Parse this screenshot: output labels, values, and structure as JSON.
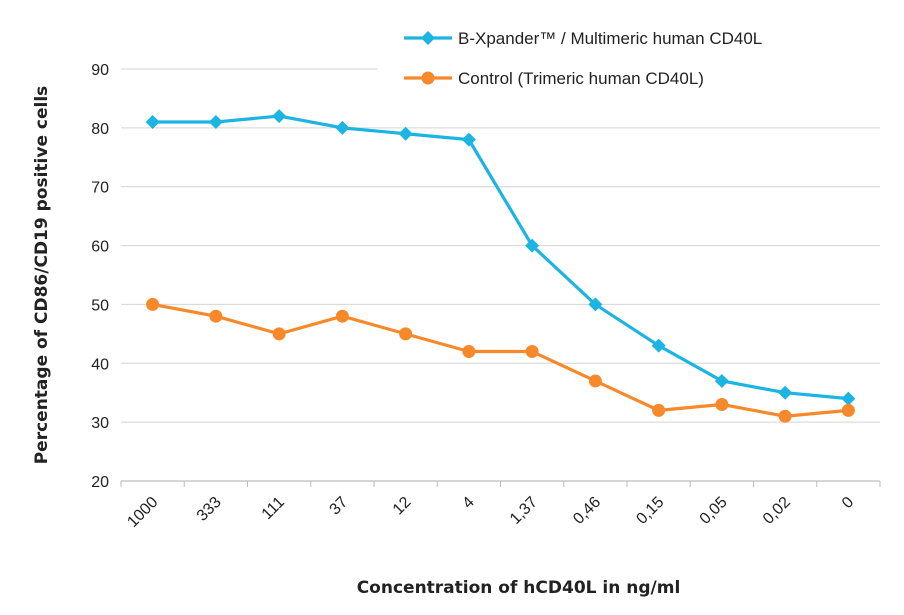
{
  "chart_data": {
    "type": "line",
    "title": "",
    "xlabel": "Concentration of hCD40L in ng/ml",
    "ylabel": "Percentage of CD86/CD19 positive cells",
    "categories": [
      "1000",
      "333",
      "111",
      "37",
      "12",
      "4",
      "1,37",
      "0,46",
      "0,15",
      "0,05",
      "0,02",
      "0"
    ],
    "ylim": [
      20,
      90
    ],
    "yticks": [
      20,
      30,
      40,
      50,
      60,
      70,
      80,
      90
    ],
    "grid": "horizontal",
    "legend_position": "top-right",
    "series": [
      {
        "name": "B-Xpander™ / Multimeric human CD40L",
        "color": "#1cb4e3",
        "marker": "diamond",
        "values": [
          81,
          81,
          82,
          80,
          79,
          78,
          60,
          50,
          43,
          37,
          35,
          34
        ]
      },
      {
        "name": "Control (Trimeric human CD40L)",
        "color": "#f7892a",
        "marker": "circle",
        "values": [
          50,
          48,
          45,
          48,
          45,
          42,
          42,
          37,
          32,
          33,
          31,
          32
        ]
      }
    ]
  }
}
